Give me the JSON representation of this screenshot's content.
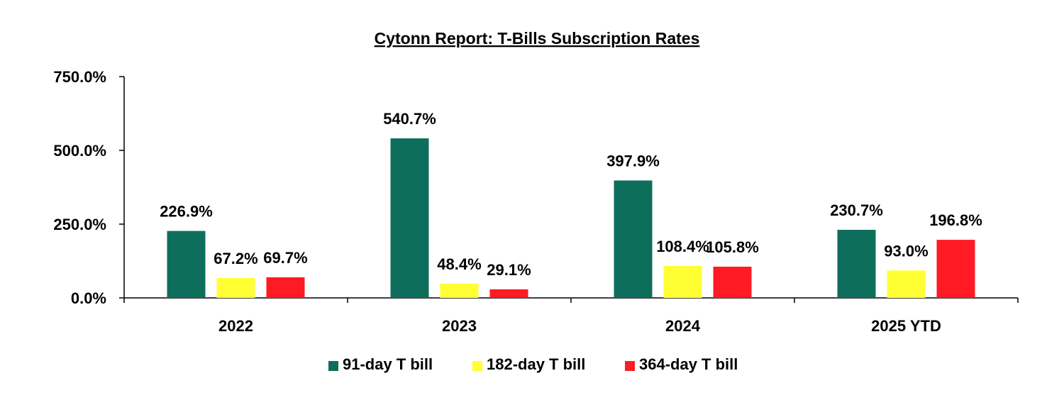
{
  "chart_data": {
    "type": "bar",
    "title": "Cytonn Report: T-Bills Subscription Rates",
    "xlabel": "",
    "ylabel": "",
    "categories": [
      "2022",
      "2023",
      "2024",
      "2025 YTD"
    ],
    "series": [
      {
        "name": "91-day T bill",
        "color": "#0e6e5c",
        "values": [
          226.9,
          540.7,
          397.9,
          230.7
        ],
        "labels": [
          "226.9%",
          "540.7%",
          "397.9%",
          "230.7%"
        ]
      },
      {
        "name": "182-day T bill",
        "color": "#ffff33",
        "values": [
          67.2,
          48.4,
          108.4,
          93.0
        ],
        "labels": [
          "67.2%",
          "48.4%",
          "108.4%",
          "93.0%"
        ]
      },
      {
        "name": "364-day T bill",
        "color": "#ff1a24",
        "values": [
          69.7,
          29.1,
          105.8,
          196.8
        ],
        "labels": [
          "69.7%",
          "29.1%",
          "105.8%",
          "196.8%"
        ]
      }
    ],
    "ylim": [
      0,
      750
    ],
    "yticks": [
      0,
      250,
      500,
      750
    ],
    "ytick_labels": [
      "0.0%",
      "250.0%",
      "500.0%",
      "750.0%"
    ],
    "grid": false,
    "legend_position": "bottom"
  }
}
